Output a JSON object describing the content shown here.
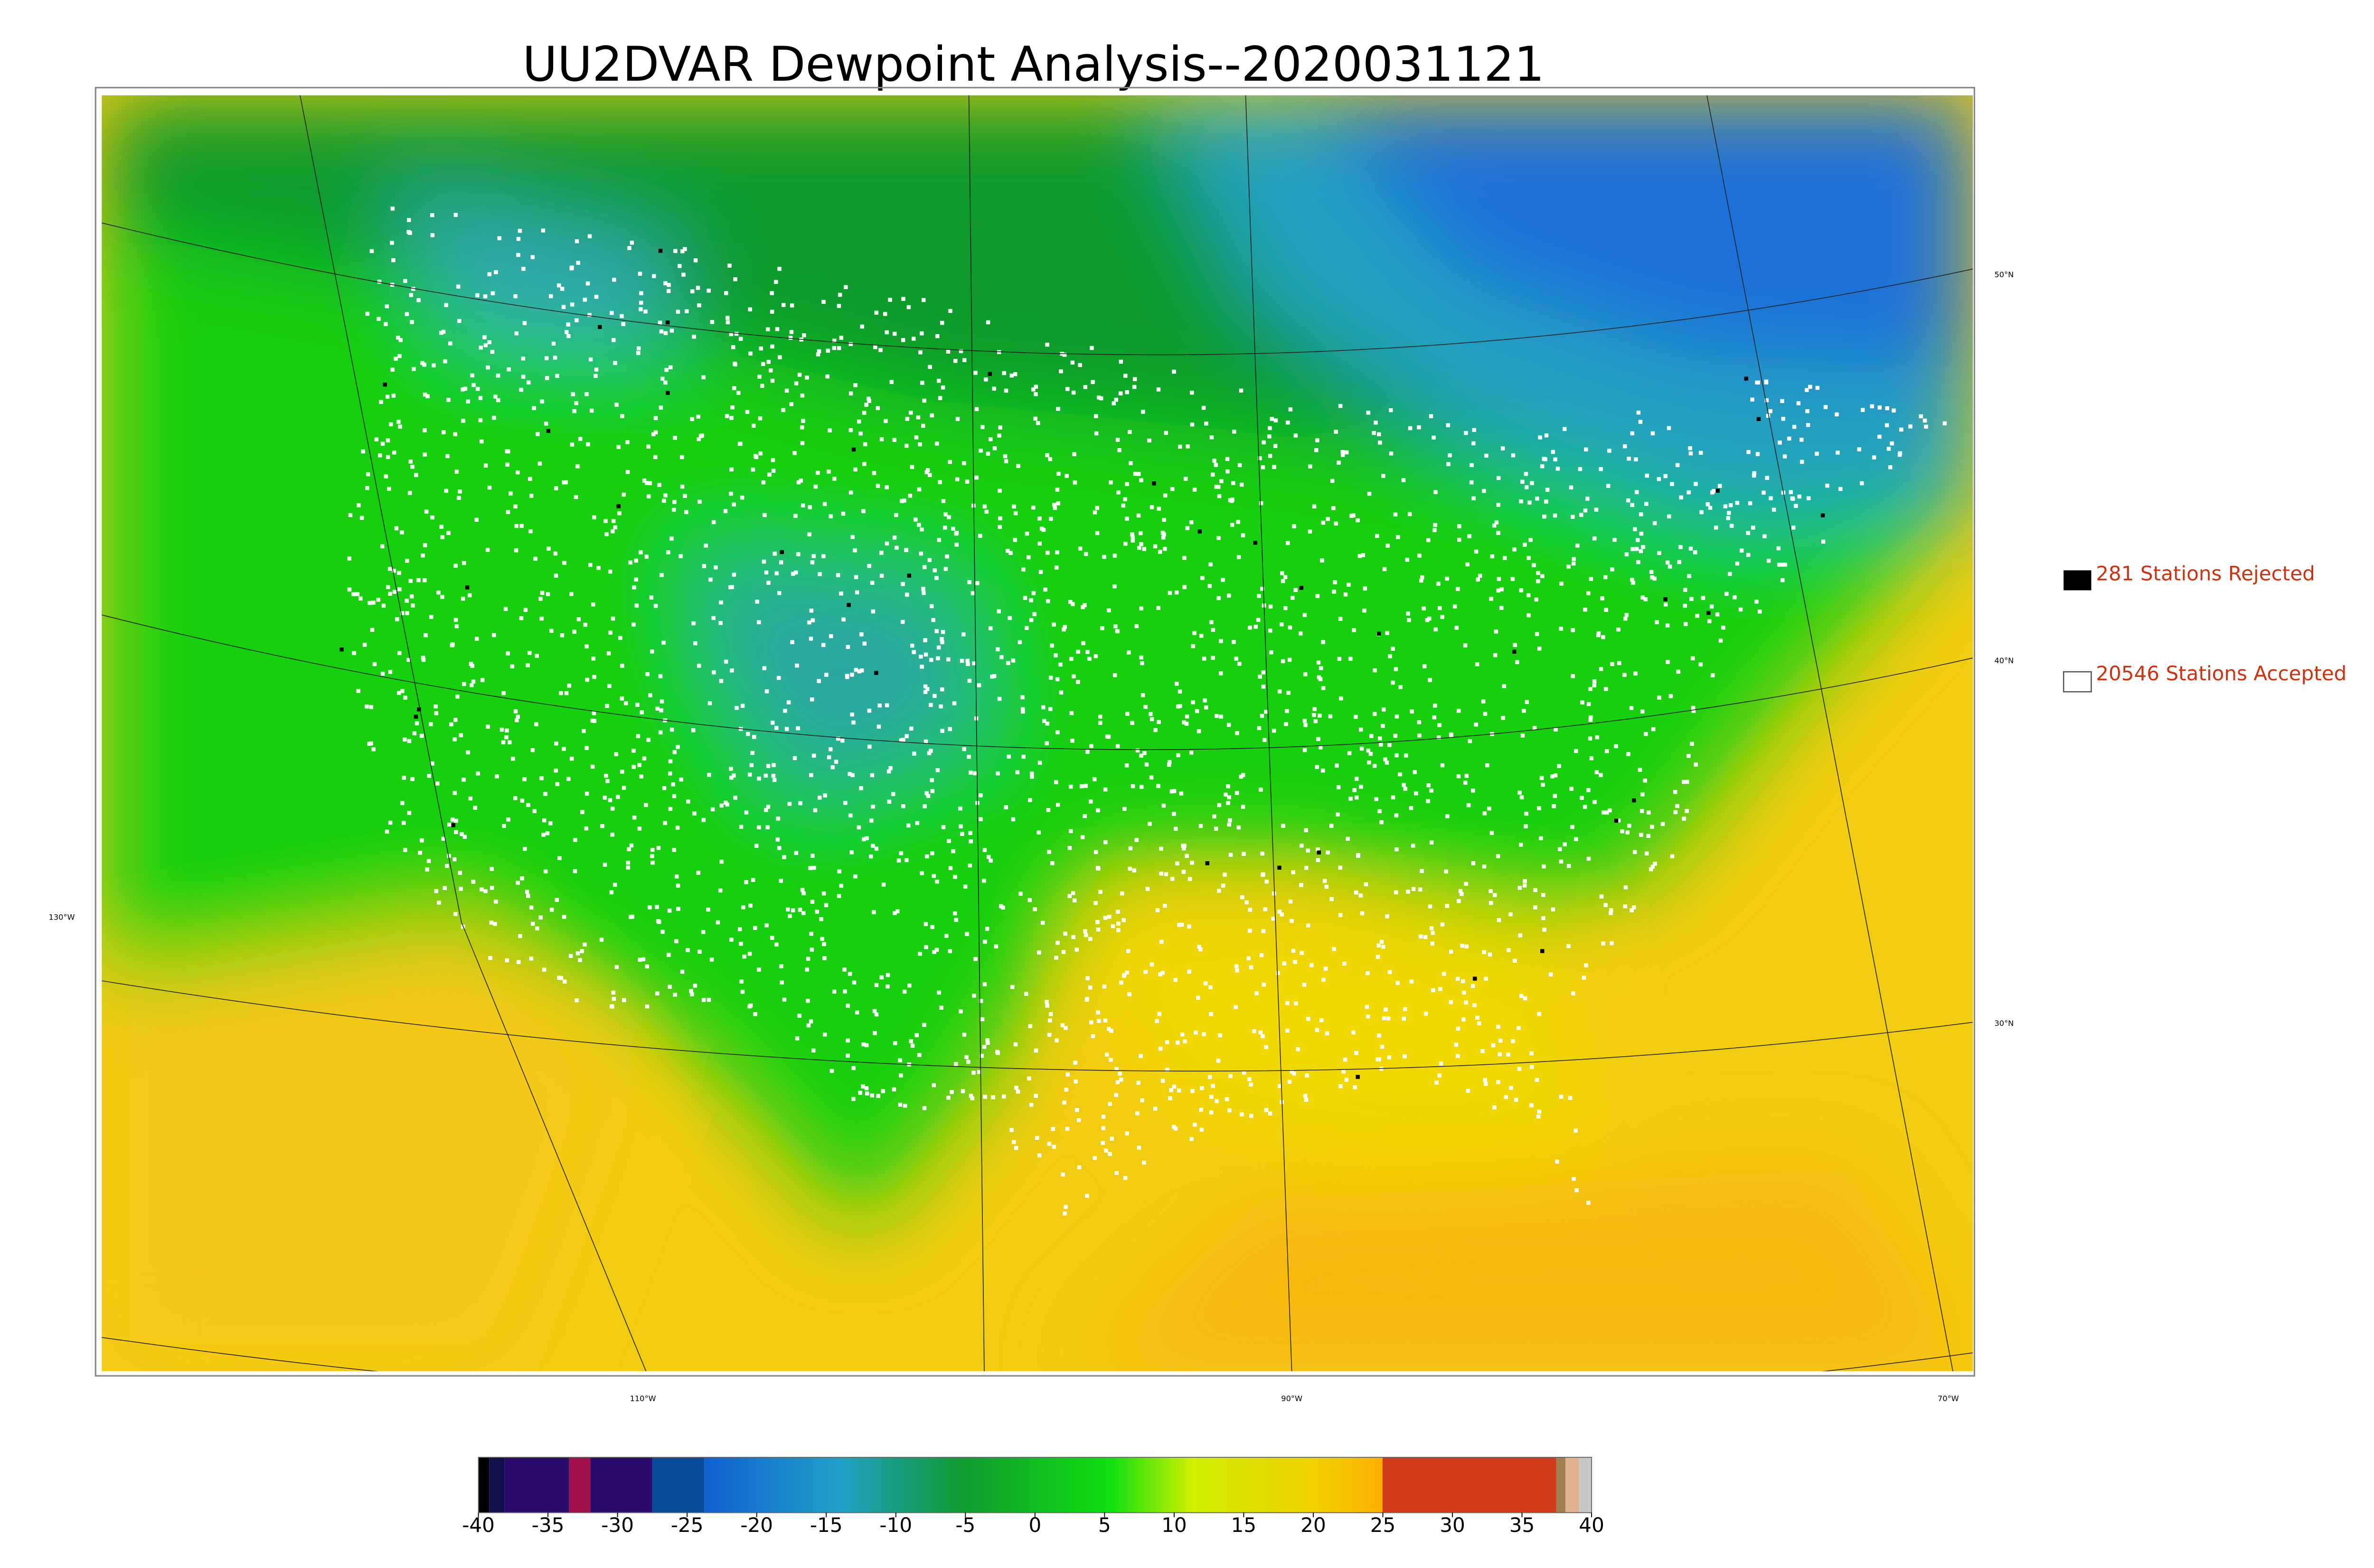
{
  "title": "UU2DVAR Dewpoint Analysis--2020031121",
  "legend": [
    "281 Stations Rejected",
    "20546 Stations Accepted"
  ],
  "lat_labels": [
    "50°N",
    "40°N",
    "30°N"
  ],
  "lon_labels": [
    "130°W",
    "110°W",
    "90°W",
    "70°W"
  ],
  "colorbar": {
    "lim": [
      -40,
      40
    ],
    "ticks": [
      -40,
      -35,
      -30,
      -25,
      -20,
      -15,
      -10,
      -5,
      0,
      5,
      10,
      15,
      20,
      25,
      30,
      35,
      40
    ]
  }
}
